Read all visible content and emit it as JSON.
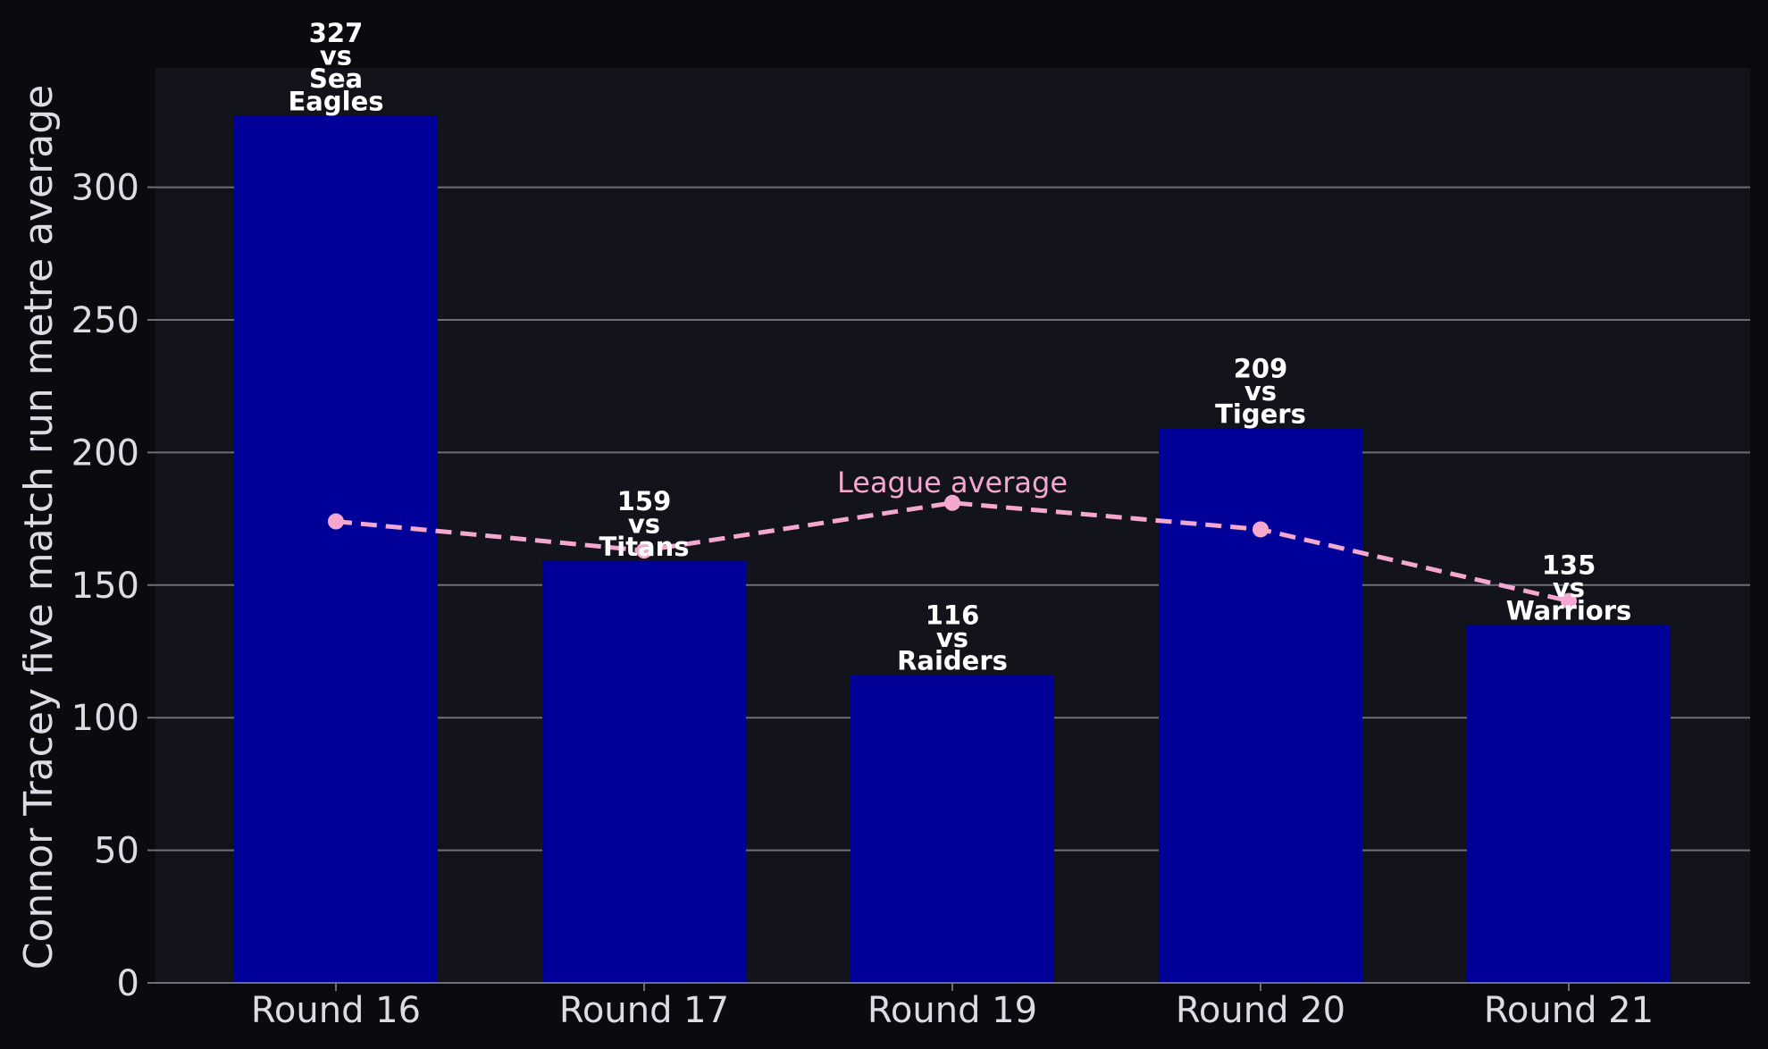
{
  "chart_data": {
    "type": "bar",
    "ylabel": "Connor Tracey five match run metre average",
    "ylim": [
      0,
      345
    ],
    "yticks": [
      "0",
      "50",
      "100",
      "150",
      "200",
      "250",
      "300"
    ],
    "grid": "horizontal",
    "categories": [
      "Round 16",
      "Round 17",
      "Round 19",
      "Round 20",
      "Round 21"
    ],
    "series": [
      {
        "values": [
          327,
          159,
          116,
          209,
          135
        ],
        "color": "#000099",
        "labels": [
          [
            "327",
            "vs",
            "Sea",
            "Eagles"
          ],
          [
            "159",
            "vs",
            "Titans"
          ],
          [
            "116",
            "vs",
            "Raiders"
          ],
          [
            "209",
            "vs",
            "Tigers"
          ],
          [
            "135",
            "vs",
            "Warriors"
          ]
        ]
      },
      {
        "name": "League average",
        "type": "line",
        "style": "dashed",
        "color": "#f4a7cf",
        "values": [
          174,
          163,
          181,
          171,
          144
        ]
      }
    ]
  }
}
